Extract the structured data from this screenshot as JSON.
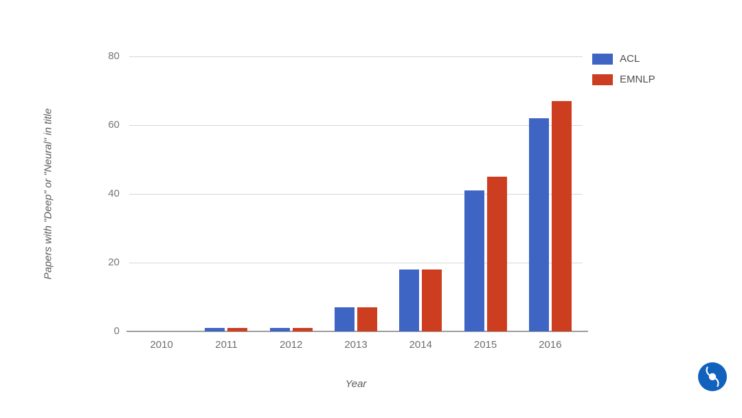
{
  "chart_data": {
    "type": "bar",
    "title": "",
    "categories": [
      "2010",
      "2011",
      "2012",
      "2013",
      "2014",
      "2015",
      "2016"
    ],
    "series": [
      {
        "name": "ACL",
        "color": "#3e64c4",
        "values": [
          0,
          1,
          1,
          7,
          18,
          41,
          62
        ]
      },
      {
        "name": "EMNLP",
        "color": "#cd3d20",
        "values": [
          0,
          1,
          1,
          7,
          18,
          45,
          67
        ]
      }
    ],
    "xlabel": "Year",
    "ylabel": "Papers with \"Deep\" or \"Neural\" in title",
    "yticks": [
      0,
      20,
      40,
      60,
      80
    ],
    "ylim": [
      0,
      80
    ],
    "grid": true,
    "legend_position": "top-right"
  },
  "branding": {
    "logo": "blue-swirl-logo",
    "logo_color": "#1261bd"
  }
}
